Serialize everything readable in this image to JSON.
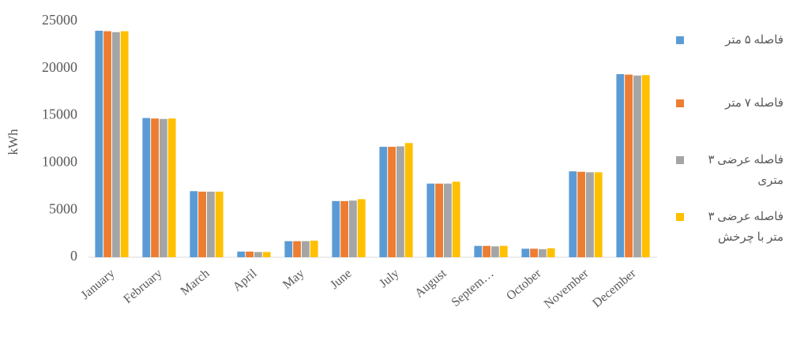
{
  "chart_data": {
    "type": "bar",
    "y_label": "kWh",
    "categories": [
      "January",
      "February",
      "March",
      "April",
      "May",
      "June",
      "July",
      "August",
      "Septem…",
      "October",
      "November",
      "December"
    ],
    "series": [
      {
        "name": "فاصله ۵ متر",
        "color": "#5b9bd5",
        "values": [
          24000,
          14750,
          7000,
          600,
          1700,
          5950,
          11700,
          7800,
          1200,
          900,
          9100,
          19400
        ]
      },
      {
        "name": "فاصله ۷ متر",
        "color": "#ed7d31",
        "values": [
          23950,
          14700,
          6950,
          600,
          1700,
          5950,
          11700,
          7800,
          1200,
          900,
          9050,
          19350
        ]
      },
      {
        "name": "فاصله عرضی ۳ متری",
        "color": "#a5a5a5",
        "values": [
          23850,
          14650,
          6950,
          550,
          1700,
          6000,
          11750,
          7800,
          1150,
          850,
          9000,
          19250
        ]
      },
      {
        "name": "فاصله عرضی ۳ متر با چرخش",
        "color": "#ffc000",
        "values": [
          23950,
          14700,
          6950,
          550,
          1750,
          6150,
          12100,
          8000,
          1200,
          950,
          9000,
          19300
        ]
      }
    ],
    "ylim": [
      0,
      25000
    ],
    "yticks": [
      0,
      5000,
      10000,
      15000,
      20000,
      25000
    ],
    "grid": false
  }
}
